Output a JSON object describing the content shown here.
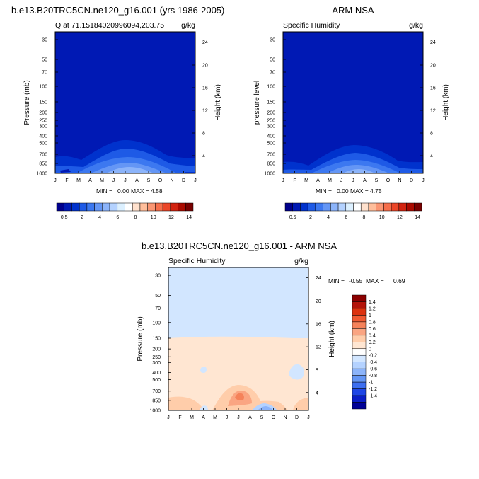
{
  "colors": {
    "abs_scale": [
      "#00008c",
      "#0019b4",
      "#0032cd",
      "#1e5ae6",
      "#3c78f0",
      "#6496f5",
      "#8cb4fa",
      "#b4d2ff",
      "#dcf0ff",
      "#ffffff",
      "#ffe1cd",
      "#ffbe9b",
      "#fa9673",
      "#f56e4b",
      "#eb4628",
      "#d2230f",
      "#aa0a00",
      "#780000"
    ],
    "diff_scale": [
      "#000096",
      "#0a1ec8",
      "#1e46e6",
      "#3c6ef0",
      "#6496f5",
      "#8cb4fa",
      "#b4d2ff",
      "#d2e6ff",
      "#ffffff",
      "#ffe6d2",
      "#ffcdaa",
      "#faa582",
      "#f5825a",
      "#f05a32",
      "#dc320f",
      "#b4140a",
      "#8c0000"
    ]
  },
  "chart_data": [
    {
      "name": "model",
      "type": "contour",
      "title": "b.e13.B20TRC5CN.ne120_g16.001 (yrs 1986-2005)",
      "left_label": "Q at 71.15184020996094,203.75",
      "right_label": "g/kg",
      "ylabel": "Pressure (mb)",
      "ylabel_right": "Height (km)",
      "x_ticks": [
        "J",
        "F",
        "M",
        "A",
        "M",
        "J",
        "J",
        "A",
        "S",
        "O",
        "N",
        "D",
        "J"
      ],
      "pressure_ticks": [
        "30",
        "50",
        "70",
        "100",
        "150",
        "200",
        "250",
        "300",
        "400",
        "500",
        "700",
        "850",
        "1000"
      ],
      "height_ticks": [
        "4",
        "8",
        "12",
        "16",
        "20",
        "24"
      ],
      "min_label": "MIN =",
      "min": "0.00",
      "max_label": "MAX =",
      "max": "4.58",
      "colorbar_labels": [
        "0.5",
        "2",
        "4",
        "6",
        "8",
        "10",
        "12",
        "14"
      ]
    },
    {
      "name": "obs",
      "type": "contour",
      "title": "ARM NSA",
      "left_label": "Specific Humidity",
      "right_label": "g/kg",
      "ylabel": "pressure level",
      "ylabel_right": "Height (km)",
      "x_ticks": [
        "J",
        "F",
        "M",
        "A",
        "M",
        "J",
        "J",
        "A",
        "S",
        "O",
        "N",
        "D",
        "J"
      ],
      "pressure_ticks": [
        "30",
        "50",
        "70",
        "100",
        "150",
        "200",
        "250",
        "300",
        "400",
        "500",
        "700",
        "850",
        "1000"
      ],
      "height_ticks": [
        "4",
        "8",
        "12",
        "16",
        "20",
        "24"
      ],
      "min_label": "MIN =",
      "min": "0.00",
      "max_label": "MAX =",
      "max": "4.75",
      "colorbar_labels": [
        "0.5",
        "2",
        "4",
        "6",
        "8",
        "10",
        "12",
        "14"
      ]
    },
    {
      "name": "difference",
      "type": "contour",
      "title": "b.e13.B20TRC5CN.ne120_g16.001 - ARM NSA",
      "left_label": "Specific Humidity",
      "right_label": "g/kg",
      "ylabel": "Pressure (mb)",
      "ylabel_right": "Height (km)",
      "x_ticks": [
        "J",
        "F",
        "M",
        "A",
        "M",
        "J",
        "J",
        "A",
        "S",
        "O",
        "N",
        "D",
        "J"
      ],
      "pressure_ticks": [
        "30",
        "50",
        "70",
        "100",
        "150",
        "200",
        "250",
        "300",
        "400",
        "500",
        "700",
        "850",
        "1000"
      ],
      "height_ticks": [
        "4",
        "8",
        "12",
        "16",
        "20",
        "24"
      ],
      "min_label": "MIN =",
      "min": "-0.55",
      "max_label": "MAX =",
      "max": "0.69",
      "colorbar_labels": [
        "1.4",
        "1.2",
        "1",
        "0.8",
        "0.6",
        "0.4",
        "0.2",
        "0",
        "-0.2",
        "-0.4",
        "-0.6",
        "-0.8",
        "-1",
        "-1.2",
        "-1.4"
      ]
    }
  ]
}
